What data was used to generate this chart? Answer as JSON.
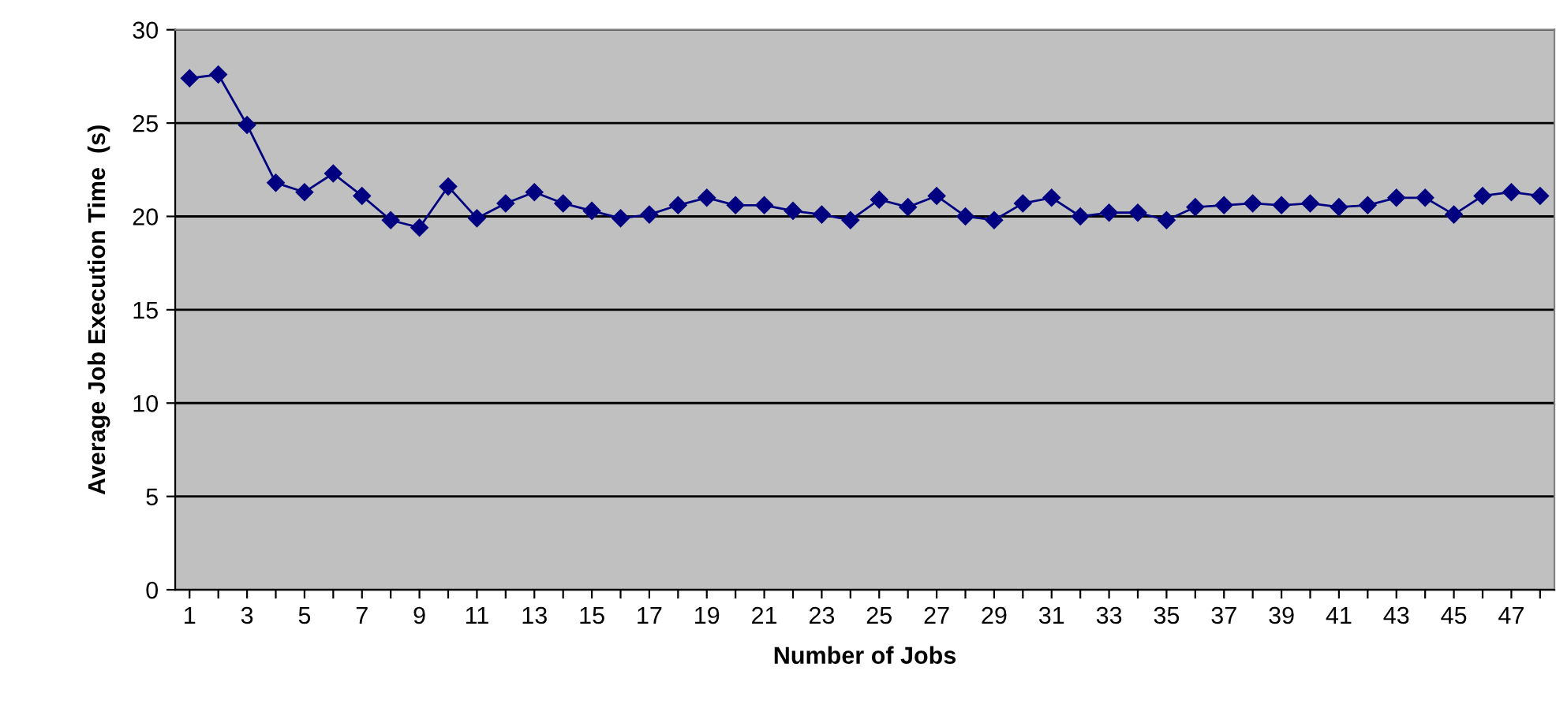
{
  "chart_data": {
    "type": "line",
    "xlabel": "Number of Jobs",
    "ylabel": "Average Job Execution Time  (s)",
    "categories": [
      "1",
      null,
      "3",
      null,
      "5",
      null,
      "7",
      null,
      "9",
      null,
      "11",
      null,
      "13",
      null,
      "15",
      null,
      "17",
      null,
      "19",
      null,
      "21",
      null,
      "23",
      null,
      "25",
      null,
      "27",
      null,
      "29",
      null,
      "31",
      null,
      "33",
      null,
      "35",
      null,
      "37",
      null,
      "39",
      null,
      "41",
      null,
      "43",
      null,
      "45",
      null,
      "47",
      null
    ],
    "series": [
      {
        "color": "#000080",
        "values": [
          27.4,
          27.6,
          24.9,
          21.8,
          21.3,
          22.3,
          21.1,
          19.8,
          19.4,
          21.6,
          19.9,
          20.7,
          21.3,
          20.7,
          20.3,
          19.9,
          20.1,
          20.6,
          21.0,
          20.6,
          20.6,
          20.3,
          20.1,
          19.8,
          20.9,
          20.5,
          21.1,
          20.0,
          19.8,
          20.7,
          21.0,
          20.0,
          20.2,
          20.2,
          19.8,
          20.5,
          20.6,
          20.7,
          20.6,
          20.7,
          20.5,
          20.6,
          21.0,
          21.0,
          20.1,
          21.1,
          21.3,
          21.1
        ]
      }
    ],
    "ylim": [
      0,
      30
    ],
    "yticks": [
      0,
      5,
      10,
      15,
      20,
      25,
      30
    ],
    "grid": "y",
    "marker": "diamond",
    "line_style": "solid",
    "legend": false
  }
}
